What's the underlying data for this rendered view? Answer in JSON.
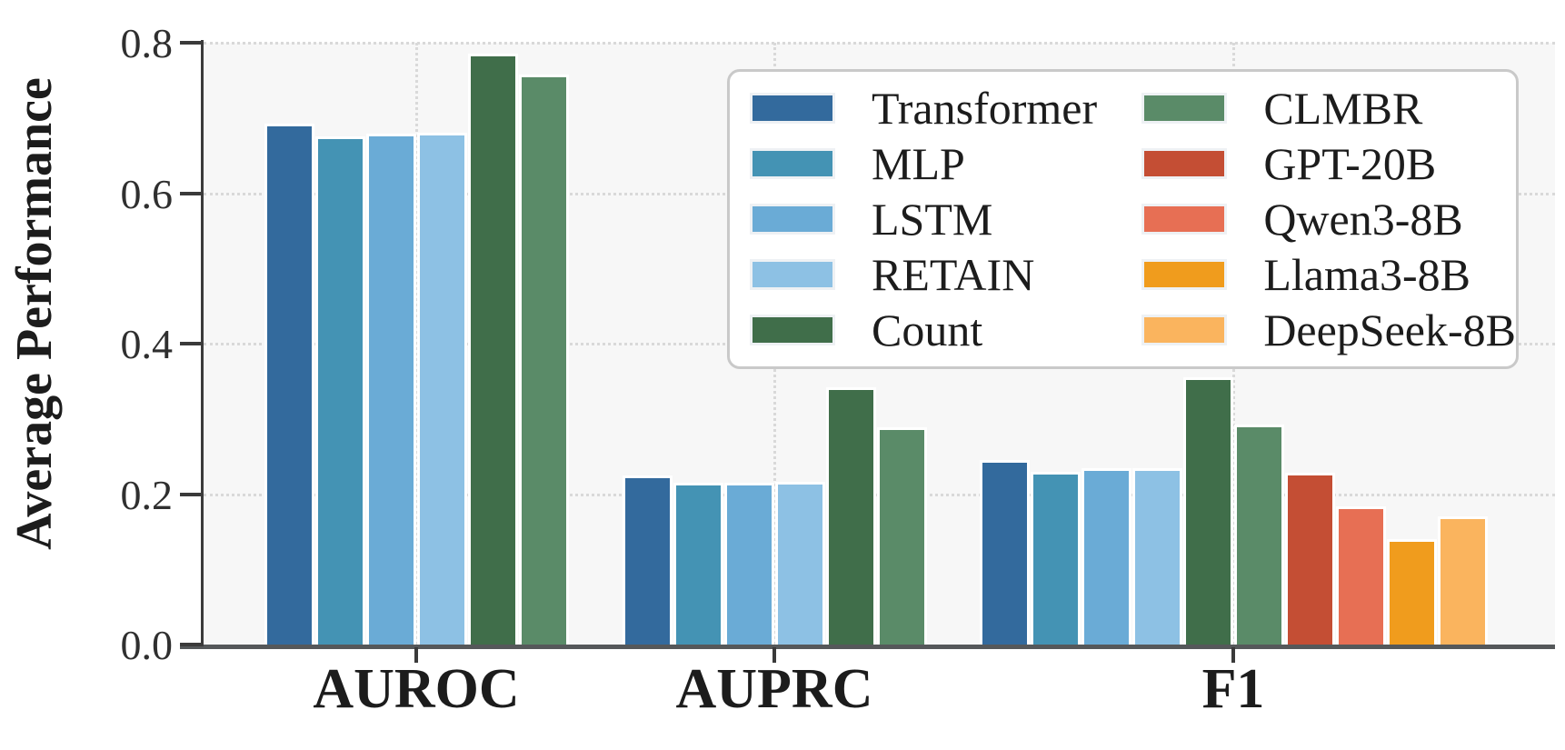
{
  "chart_data": {
    "type": "bar",
    "title": "",
    "xlabel": "",
    "ylabel": "Average Performance",
    "ylim": [
      0.0,
      0.8
    ],
    "yticks": [
      0.0,
      0.2,
      0.4,
      0.6,
      0.8
    ],
    "ytick_labels": [
      "0.0",
      "0.2",
      "0.4",
      "0.6",
      "0.8"
    ],
    "categories": [
      "AUROC",
      "AUPRC",
      "F1"
    ],
    "grid": "dotted horizontal gridlines at y ticks and vertical gridlines at category centers",
    "legend_position": "upper right, 2 columns, framed rounded box",
    "background_color": "#f7f7f7",
    "series": [
      {
        "name": "Transformer",
        "color": "#336a9d",
        "values": [
          0.693,
          0.225,
          0.245
        ]
      },
      {
        "name": "MLP",
        "color": "#4493b4",
        "values": [
          0.675,
          0.215,
          0.23
        ]
      },
      {
        "name": "LSTM",
        "color": "#6aabd6",
        "values": [
          0.679,
          0.215,
          0.235
        ]
      },
      {
        "name": "RETAIN",
        "color": "#8dc1e4",
        "values": [
          0.68,
          0.216,
          0.235
        ]
      },
      {
        "name": "Count",
        "color": "#406e4a",
        "values": [
          0.785,
          0.342,
          0.355
        ]
      },
      {
        "name": "CLMBR",
        "color": "#5a8b68",
        "values": [
          0.758,
          0.289,
          0.292
        ]
      },
      {
        "name": "GPT-20B",
        "color": "#c44e34",
        "values": [
          null,
          null,
          0.228
        ]
      },
      {
        "name": "Qwen3-8B",
        "color": "#e76f54",
        "values": [
          null,
          null,
          0.184
        ]
      },
      {
        "name": "Llama3-8B",
        "color": "#f09c1d",
        "values": [
          null,
          null,
          0.14
        ]
      },
      {
        "name": "DeepSeek-8B",
        "color": "#fab45e",
        "values": [
          null,
          null,
          0.17
        ]
      }
    ]
  }
}
